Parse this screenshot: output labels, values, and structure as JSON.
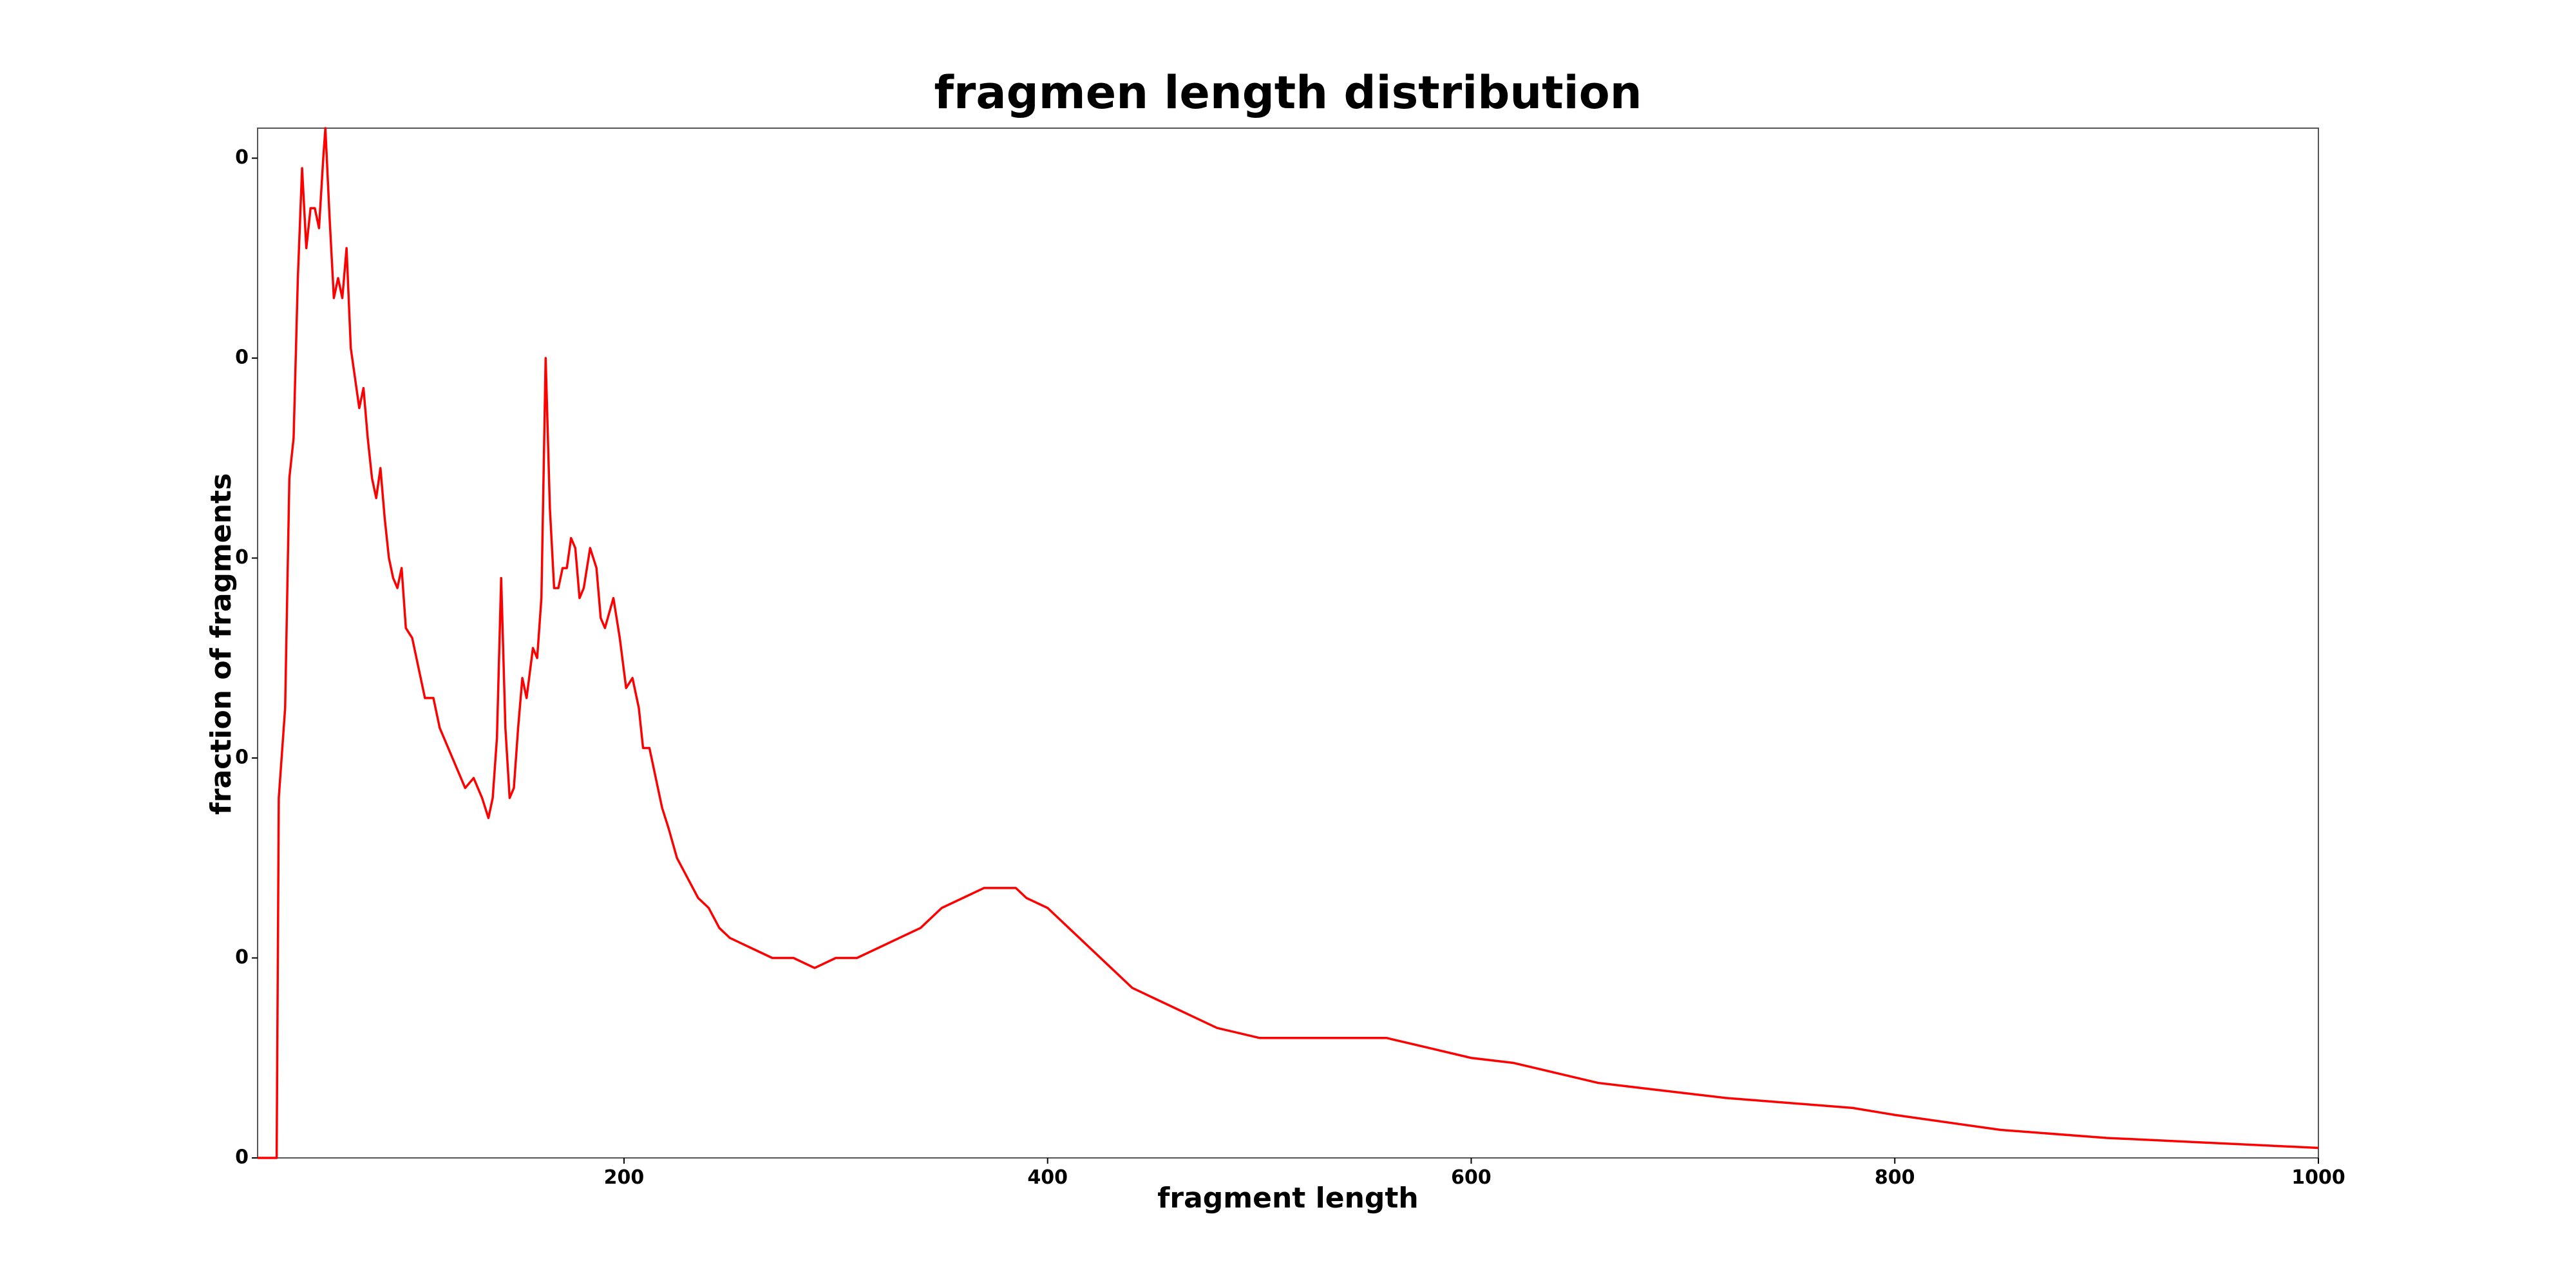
{
  "chart_data": {
    "type": "line",
    "title": "fragmen length distribution",
    "x_label": "fragment length",
    "y_label": "fraction of fragments",
    "xlim": [
      27,
      1000
    ],
    "ylim": [
      0,
      0.0103
    ],
    "xticks": [
      200,
      400,
      600,
      800,
      1000
    ],
    "yticks": [
      0,
      {
        "value": 0.002,
        "label": "0"
      },
      {
        "value": 0.004,
        "label": "0"
      },
      {
        "value": 0.006,
        "label": "0"
      },
      {
        "value": 0.008,
        "label": "0"
      },
      {
        "value": 0.01,
        "label": "0"
      }
    ],
    "grid": false,
    "series": [
      {
        "color": "#ff0000",
        "x": [
          27,
          35,
          36,
          37,
          40,
          42,
          44,
          46,
          48,
          50,
          52,
          54,
          56,
          58,
          59,
          61,
          63,
          65,
          67,
          69,
          71,
          73,
          75,
          77,
          79,
          81,
          83,
          85,
          87,
          89,
          91,
          93,
          95,
          97,
          100,
          103,
          106,
          110,
          113,
          117,
          121,
          125,
          129,
          133,
          136,
          138,
          140,
          142,
          144,
          146,
          148,
          150,
          152,
          154,
          157,
          159,
          161,
          163,
          165,
          167,
          169,
          171,
          173,
          175,
          177,
          179,
          181,
          184,
          187,
          189,
          191,
          195,
          198,
          201,
          204,
          207,
          209,
          212,
          215,
          218,
          221,
          225,
          230,
          235,
          240,
          245,
          250,
          260,
          270,
          280,
          290,
          300,
          310,
          320,
          330,
          340,
          350,
          360,
          370,
          380,
          385,
          390,
          400,
          410,
          420,
          430,
          440,
          450,
          460,
          470,
          480,
          500,
          520,
          540,
          560,
          580,
          600,
          620,
          640,
          660,
          680,
          700,
          720,
          750,
          780,
          800,
          850,
          900,
          950,
          1000
        ],
        "values": [
          0,
          0,
          0,
          0.0036,
          0.0045,
          0.0068,
          0.0072,
          0.0088,
          0.0099,
          0.0091,
          0.0095,
          0.0095,
          0.0093,
          0.01,
          0.0103,
          0.0094,
          0.0086,
          0.0088,
          0.0086,
          0.0091,
          0.0081,
          0.0078,
          0.0075,
          0.0077,
          0.0072,
          0.0068,
          0.0066,
          0.0069,
          0.0064,
          0.006,
          0.0058,
          0.0057,
          0.0059,
          0.0053,
          0.0052,
          0.0049,
          0.0046,
          0.0046,
          0.0043,
          0.0041,
          0.0039,
          0.0037,
          0.0038,
          0.0036,
          0.0034,
          0.0036,
          0.0042,
          0.0058,
          0.0043,
          0.0036,
          0.0037,
          0.0043,
          0.0048,
          0.0046,
          0.0051,
          0.005,
          0.0056,
          0.008,
          0.0065,
          0.0057,
          0.0057,
          0.0059,
          0.0059,
          0.0062,
          0.0061,
          0.0056,
          0.0057,
          0.0061,
          0.0059,
          0.0054,
          0.0053,
          0.0056,
          0.0052,
          0.0047,
          0.0048,
          0.0045,
          0.0041,
          0.0041,
          0.0038,
          0.0035,
          0.0033,
          0.003,
          0.0028,
          0.0026,
          0.0025,
          0.0023,
          0.0022,
          0.0021,
          0.002,
          0.002,
          0.0019,
          0.002,
          0.002,
          0.0021,
          0.0022,
          0.0023,
          0.0025,
          0.0026,
          0.0027,
          0.0027,
          0.0027,
          0.0026,
          0.0025,
          0.0023,
          0.0021,
          0.0019,
          0.0017,
          0.0016,
          0.0015,
          0.0014,
          0.0013,
          0.0012,
          0.0012,
          0.0012,
          0.0012,
          0.0011,
          0.001,
          0.00095,
          0.00085,
          0.00075,
          0.0007,
          0.00065,
          0.0006,
          0.00055,
          0.0005,
          0.00043,
          0.00028,
          0.0002,
          0.00015,
          0.0001
        ]
      }
    ]
  }
}
